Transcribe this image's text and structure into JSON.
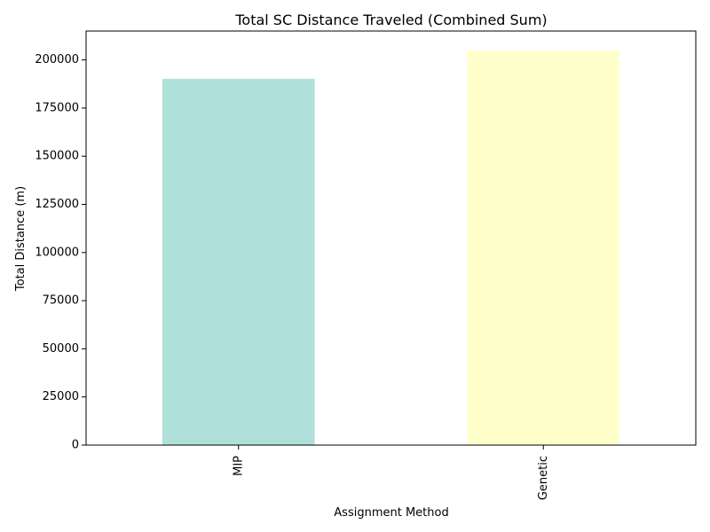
{
  "chart_data": {
    "type": "bar",
    "title": "Total SC Distance Traveled (Combined Sum)",
    "xlabel": "Assignment Method",
    "ylabel": "Total Distance (m)",
    "categories": [
      "MIP",
      "Genetic"
    ],
    "values": [
      190200,
      204800
    ],
    "colors": [
      "#b0e0da",
      "#ffffcc"
    ],
    "ylim": [
      0,
      215000
    ],
    "yticks": [
      0,
      25000,
      50000,
      75000,
      100000,
      125000,
      150000,
      175000,
      200000
    ],
    "grid": false,
    "legend": "none"
  }
}
